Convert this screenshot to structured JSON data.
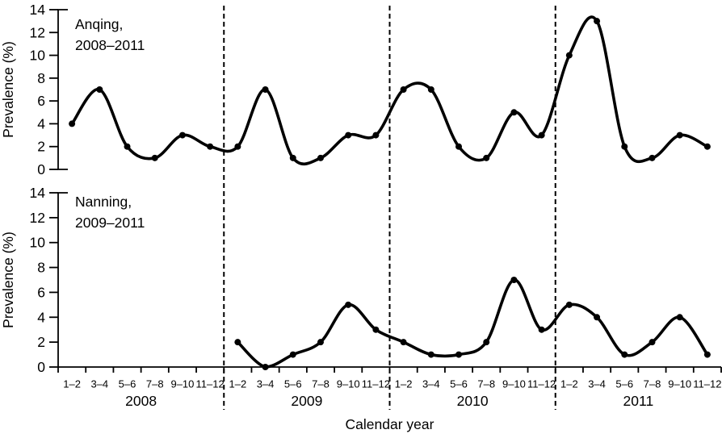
{
  "chart_data": {
    "type": "line",
    "title": "",
    "xlabel": "Calendar year",
    "ylabel": "Prevalence (%)",
    "x_axis": {
      "bimonth_tick_labels": [
        "1–2",
        "3–4",
        "5–6",
        "7–8",
        "9–10",
        "11–12"
      ],
      "year_labels": [
        "2008",
        "2009",
        "2010",
        "2011"
      ],
      "intervals_per_year": 6,
      "year_divider_style": "dashed"
    },
    "y_axis": {
      "ticks": [
        0,
        2,
        4,
        6,
        8,
        10,
        12,
        14
      ],
      "range": [
        0,
        14
      ],
      "label": "Prevalence (%)"
    },
    "panels": [
      {
        "id": "anqing",
        "annotation_lines": [
          "Anqing,",
          "2008–2011"
        ],
        "series_name": "Anqing bimonthly prevalence",
        "values_by_year": {
          "2008": [
            4,
            7,
            2,
            1,
            3,
            2
          ],
          "2009": [
            2,
            7,
            1,
            1,
            3,
            3
          ],
          "2010": [
            7,
            7,
            2,
            1,
            5,
            3
          ],
          "2011": [
            10,
            13,
            2,
            1,
            3,
            2
          ]
        }
      },
      {
        "id": "nanning",
        "annotation_lines": [
          "Nanning,",
          "2009–2011"
        ],
        "series_name": "Nanning bimonthly prevalence",
        "values_by_year": {
          "2009": [
            2,
            0,
            1,
            2,
            5,
            3
          ],
          "2010": [
            2,
            1,
            1,
            2,
            7,
            3
          ],
          "2011": [
            5,
            4,
            1,
            2,
            4,
            1
          ]
        }
      }
    ],
    "colors": {
      "line": "#000000",
      "marker": "#000000",
      "axis": "#000000",
      "text": "#000000",
      "divider": "#000000",
      "background": "#ffffff"
    },
    "legend": {
      "visible": false
    },
    "grid": false
  }
}
